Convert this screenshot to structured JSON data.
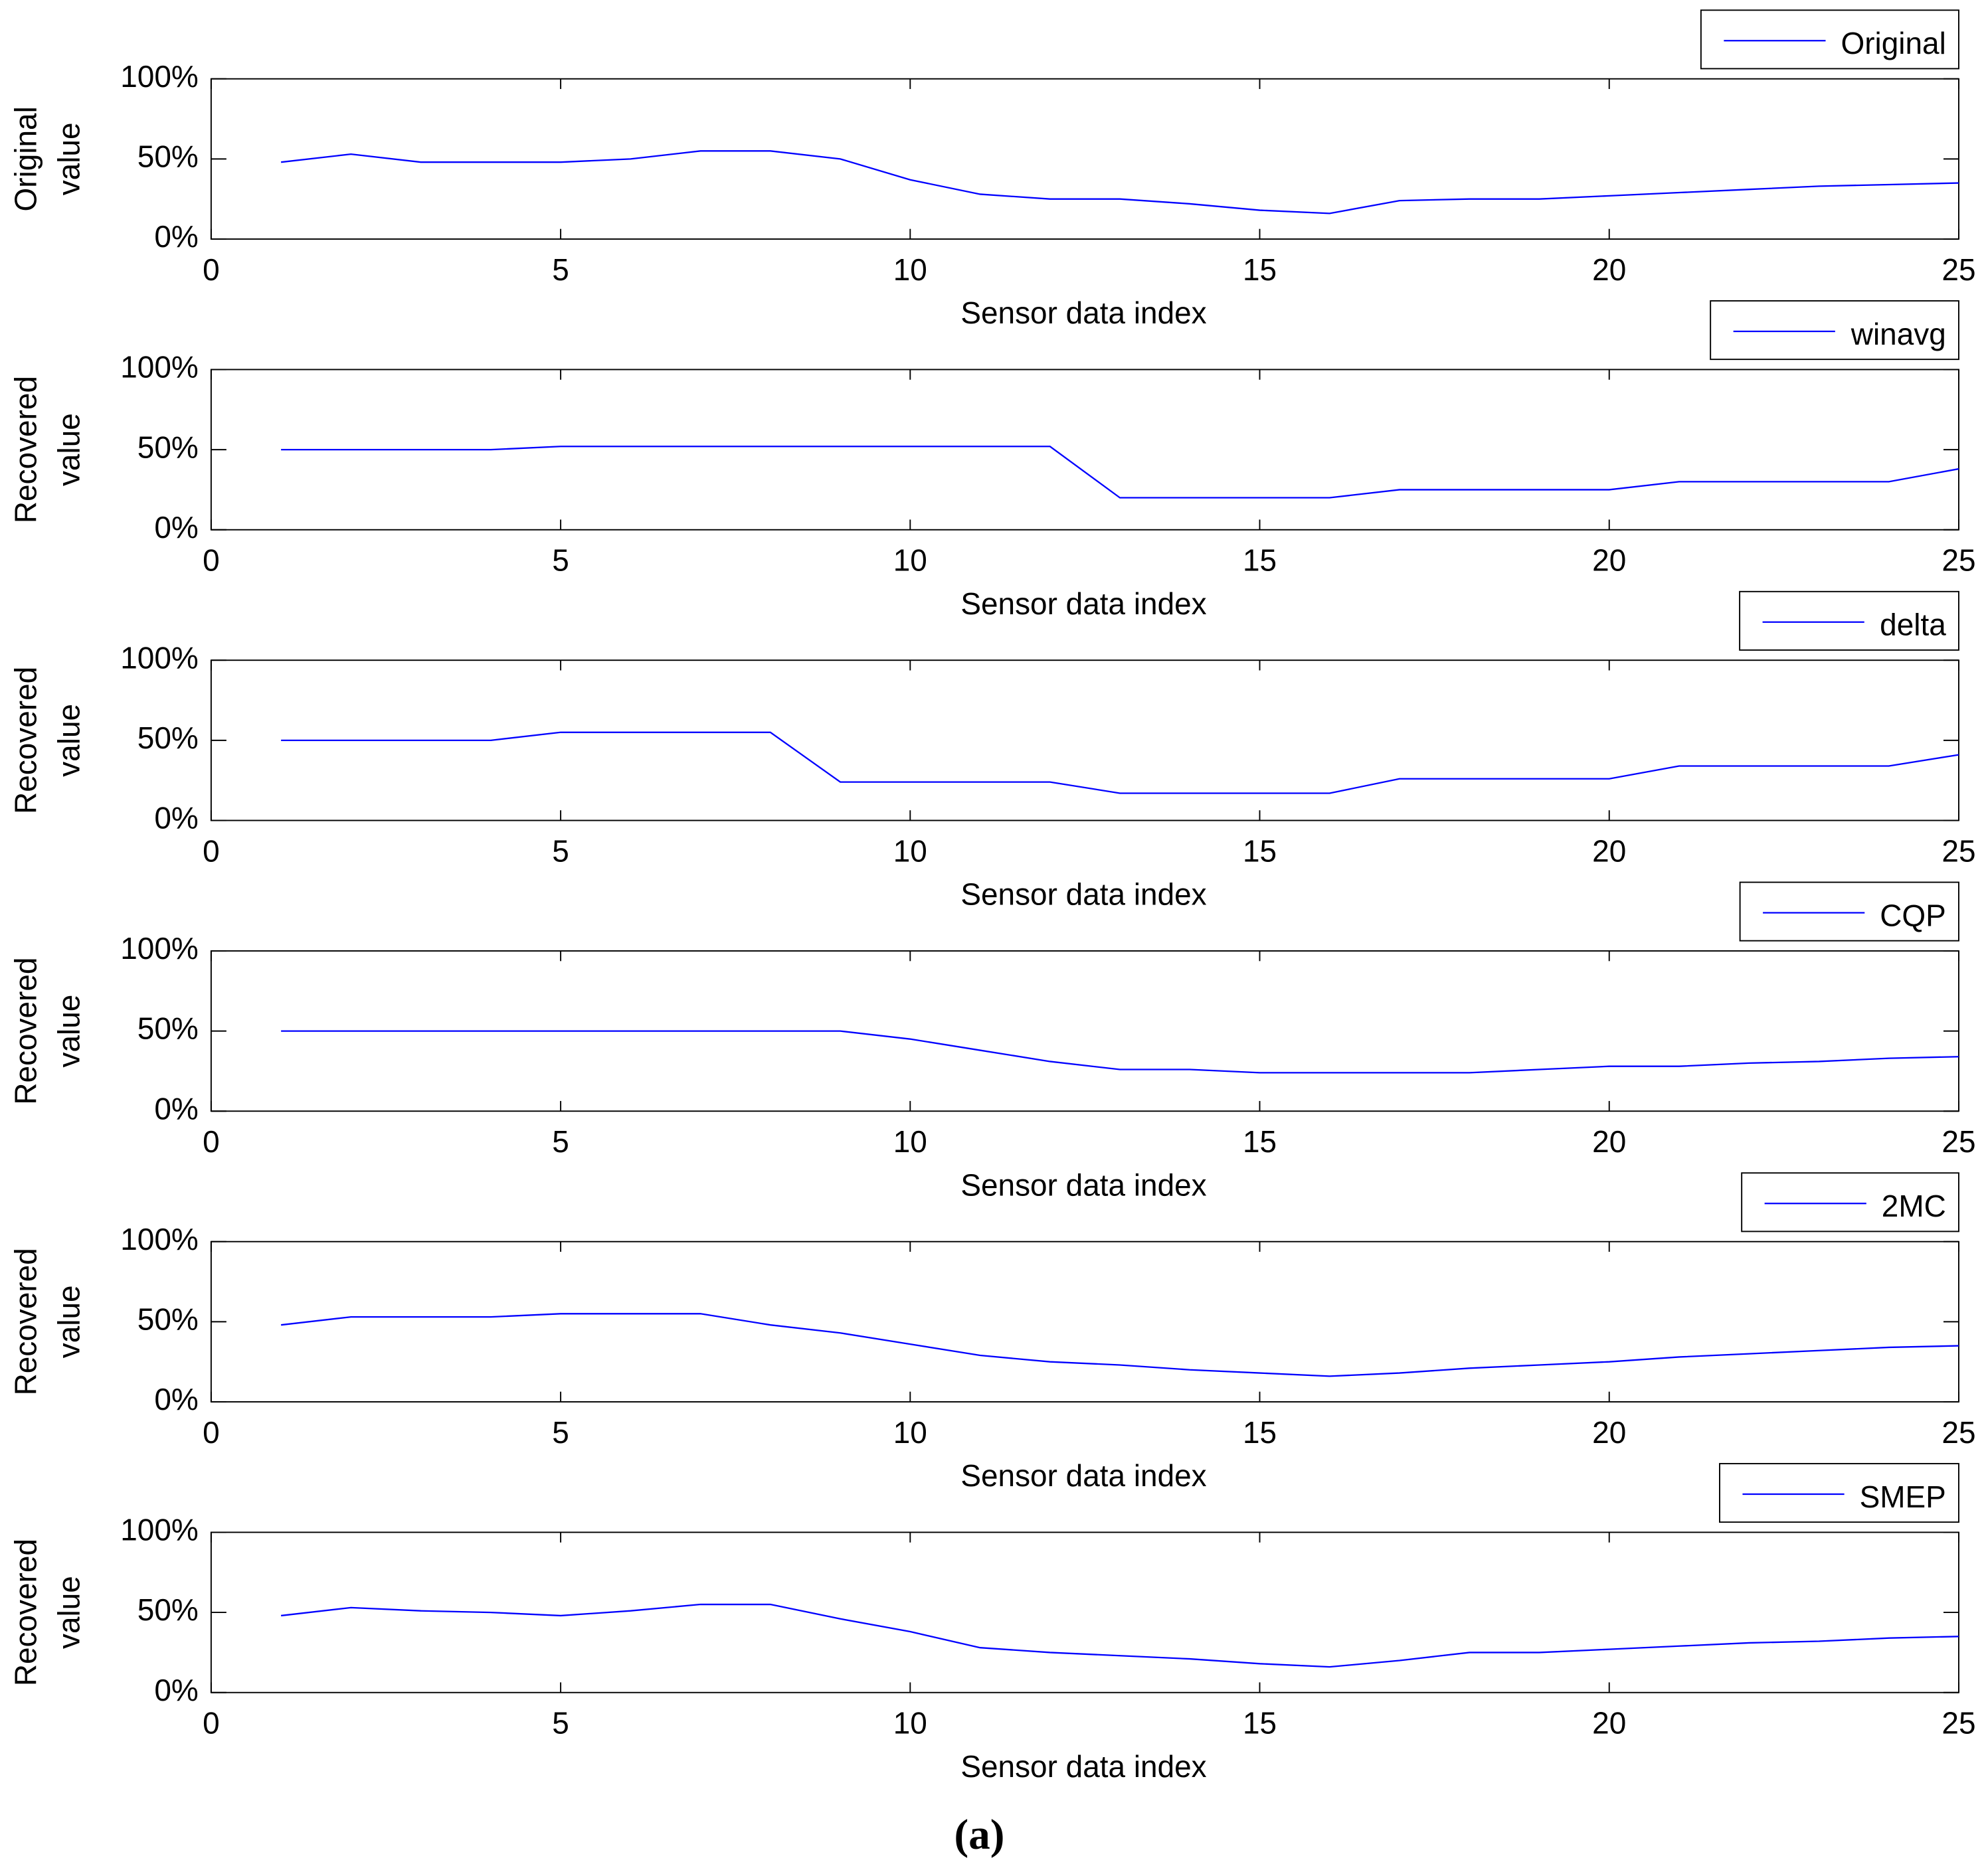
{
  "chart_data": [
    {
      "type": "line",
      "x": [
        1,
        2,
        3,
        4,
        5,
        6,
        7,
        8,
        9,
        10,
        11,
        12,
        13,
        14,
        15,
        16,
        17,
        18,
        19,
        20,
        21,
        22,
        23,
        24,
        25
      ],
      "series": [
        {
          "name": "Original",
          "color": "#0000ff",
          "values": [
            48,
            53,
            48,
            48,
            48,
            50,
            55,
            55,
            50,
            37,
            28,
            25,
            25,
            22,
            18,
            16,
            24,
            25,
            25,
            27,
            29,
            31,
            33,
            34,
            35
          ]
        }
      ],
      "xlabel": "Sensor data index",
      "ylabel": [
        "Original",
        "value"
      ],
      "xlim": [
        0,
        25
      ],
      "xticks": [
        0,
        5,
        10,
        15,
        20,
        25
      ],
      "ylim": [
        0,
        100
      ],
      "yticks": [
        {
          "value": 0,
          "label": "0%"
        },
        {
          "value": 50,
          "label": "50%"
        },
        {
          "value": 100,
          "label": "100%"
        }
      ]
    },
    {
      "type": "line",
      "x": [
        1,
        2,
        3,
        4,
        5,
        6,
        7,
        8,
        9,
        10,
        11,
        12,
        13,
        14,
        15,
        16,
        17,
        18,
        19,
        20,
        21,
        22,
        23,
        24,
        25
      ],
      "series": [
        {
          "name": "winavg",
          "color": "#0000ff",
          "values": [
            50,
            50,
            50,
            50,
            52,
            52,
            52,
            52,
            52,
            52,
            52,
            52,
            20,
            20,
            20,
            20,
            25,
            25,
            25,
            25,
            30,
            30,
            30,
            30,
            38
          ]
        }
      ],
      "xlabel": "Sensor data index",
      "ylabel": [
        "Recovered",
        "value"
      ],
      "xlim": [
        0,
        25
      ],
      "xticks": [
        0,
        5,
        10,
        15,
        20,
        25
      ],
      "ylim": [
        0,
        100
      ],
      "yticks": [
        {
          "value": 0,
          "label": "0%"
        },
        {
          "value": 50,
          "label": "50%"
        },
        {
          "value": 100,
          "label": "100%"
        }
      ]
    },
    {
      "type": "line",
      "x": [
        1,
        2,
        3,
        4,
        5,
        6,
        7,
        8,
        9,
        10,
        11,
        12,
        13,
        14,
        15,
        16,
        17,
        18,
        19,
        20,
        21,
        22,
        23,
        24,
        25
      ],
      "series": [
        {
          "name": "delta",
          "color": "#0000ff",
          "values": [
            50,
            50,
            50,
            50,
            55,
            55,
            55,
            55,
            24,
            24,
            24,
            24,
            17,
            17,
            17,
            17,
            26,
            26,
            26,
            26,
            34,
            34,
            34,
            34,
            41
          ]
        }
      ],
      "xlabel": "Sensor data index",
      "ylabel": [
        "Recovered",
        "value"
      ],
      "xlim": [
        0,
        25
      ],
      "xticks": [
        0,
        5,
        10,
        15,
        20,
        25
      ],
      "ylim": [
        0,
        100
      ],
      "yticks": [
        {
          "value": 0,
          "label": "0%"
        },
        {
          "value": 50,
          "label": "50%"
        },
        {
          "value": 100,
          "label": "100%"
        }
      ]
    },
    {
      "type": "line",
      "x": [
        1,
        2,
        3,
        4,
        5,
        6,
        7,
        8,
        9,
        10,
        11,
        12,
        13,
        14,
        15,
        16,
        17,
        18,
        19,
        20,
        21,
        22,
        23,
        24,
        25
      ],
      "series": [
        {
          "name": "CQP",
          "color": "#0000ff",
          "values": [
            50,
            50,
            50,
            50,
            50,
            50,
            50,
            50,
            50,
            45,
            38,
            31,
            26,
            26,
            24,
            24,
            24,
            24,
            26,
            28,
            28,
            30,
            31,
            33,
            34
          ]
        }
      ],
      "xlabel": "Sensor data index",
      "ylabel": [
        "Recovered",
        "value"
      ],
      "xlim": [
        0,
        25
      ],
      "xticks": [
        0,
        5,
        10,
        15,
        20,
        25
      ],
      "ylim": [
        0,
        100
      ],
      "yticks": [
        {
          "value": 0,
          "label": "0%"
        },
        {
          "value": 50,
          "label": "50%"
        },
        {
          "value": 100,
          "label": "100%"
        }
      ]
    },
    {
      "type": "line",
      "x": [
        1,
        2,
        3,
        4,
        5,
        6,
        7,
        8,
        9,
        10,
        11,
        12,
        13,
        14,
        15,
        16,
        17,
        18,
        19,
        20,
        21,
        22,
        23,
        24,
        25
      ],
      "series": [
        {
          "name": "2MC",
          "color": "#0000ff",
          "values": [
            48,
            53,
            53,
            53,
            55,
            55,
            55,
            48,
            43,
            36,
            29,
            25,
            23,
            20,
            18,
            16,
            18,
            21,
            23,
            25,
            28,
            30,
            32,
            34,
            35
          ]
        }
      ],
      "xlabel": "Sensor data index",
      "ylabel": [
        "Recovered",
        "value"
      ],
      "xlim": [
        0,
        25
      ],
      "xticks": [
        0,
        5,
        10,
        15,
        20,
        25
      ],
      "ylim": [
        0,
        100
      ],
      "yticks": [
        {
          "value": 0,
          "label": "0%"
        },
        {
          "value": 50,
          "label": "50%"
        },
        {
          "value": 100,
          "label": "100%"
        }
      ]
    },
    {
      "type": "line",
      "x": [
        1,
        2,
        3,
        4,
        5,
        6,
        7,
        8,
        9,
        10,
        11,
        12,
        13,
        14,
        15,
        16,
        17,
        18,
        19,
        20,
        21,
        22,
        23,
        24,
        25
      ],
      "series": [
        {
          "name": "SMEP",
          "color": "#0000ff",
          "values": [
            48,
            53,
            51,
            50,
            48,
            51,
            55,
            55,
            46,
            38,
            28,
            25,
            23,
            21,
            18,
            16,
            20,
            25,
            25,
            27,
            29,
            31,
            32,
            34,
            35
          ]
        }
      ],
      "xlabel": "Sensor data index",
      "ylabel": [
        "Recovered",
        "value"
      ],
      "xlim": [
        0,
        25
      ],
      "xticks": [
        0,
        5,
        10,
        15,
        20,
        25
      ],
      "ylim": [
        0,
        100
      ],
      "yticks": [
        {
          "value": 0,
          "label": "0%"
        },
        {
          "value": 50,
          "label": "50%"
        },
        {
          "value": 100,
          "label": "100%"
        }
      ]
    }
  ],
  "caption": "(a)"
}
